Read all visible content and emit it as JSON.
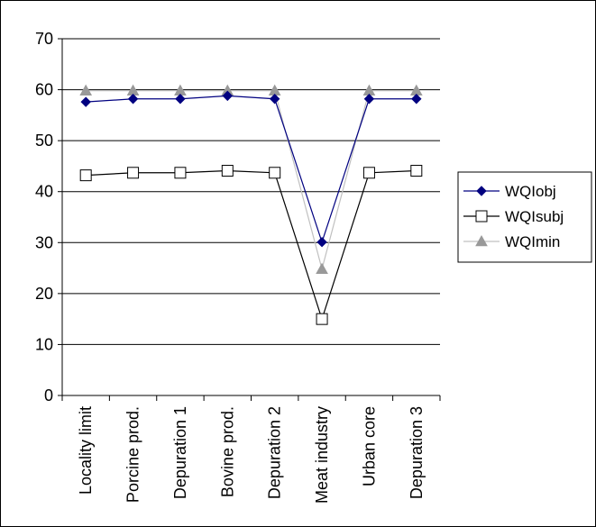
{
  "chart_data": {
    "type": "line",
    "title": "",
    "xlabel": "",
    "ylabel": "",
    "categories": [
      "Locality limit",
      "Porcine prod.",
      "Depuration 1",
      "Bovine prod.",
      "Depuration 2",
      "Meat industry",
      "Urban core",
      "Depuration 3"
    ],
    "ylim": [
      0,
      70
    ],
    "yticks": [
      0,
      10,
      20,
      30,
      40,
      50,
      60,
      70
    ],
    "grid": true,
    "legend_position": "right",
    "series": [
      {
        "name": "WQIobj",
        "values": [
          57.6,
          58.2,
          58.2,
          58.8,
          58.2,
          30.1,
          58.2,
          58.2
        ],
        "color": "#000080",
        "marker": "diamond",
        "marker_fill": "#000080",
        "marker_stroke": "#000080"
      },
      {
        "name": "WQIsubj",
        "values": [
          43.2,
          43.7,
          43.7,
          44.1,
          43.7,
          15.0,
          43.7,
          44.1
        ],
        "color": "#000000",
        "marker": "square",
        "marker_fill": "#ffffff",
        "marker_stroke": "#000000"
      },
      {
        "name": "WQImin",
        "values": [
          59.8,
          59.8,
          59.8,
          59.8,
          59.8,
          24.8,
          59.8,
          59.8
        ],
        "color": "#c0c0c0",
        "marker": "triangle",
        "marker_fill": "#999999",
        "marker_stroke": "#999999"
      }
    ]
  }
}
